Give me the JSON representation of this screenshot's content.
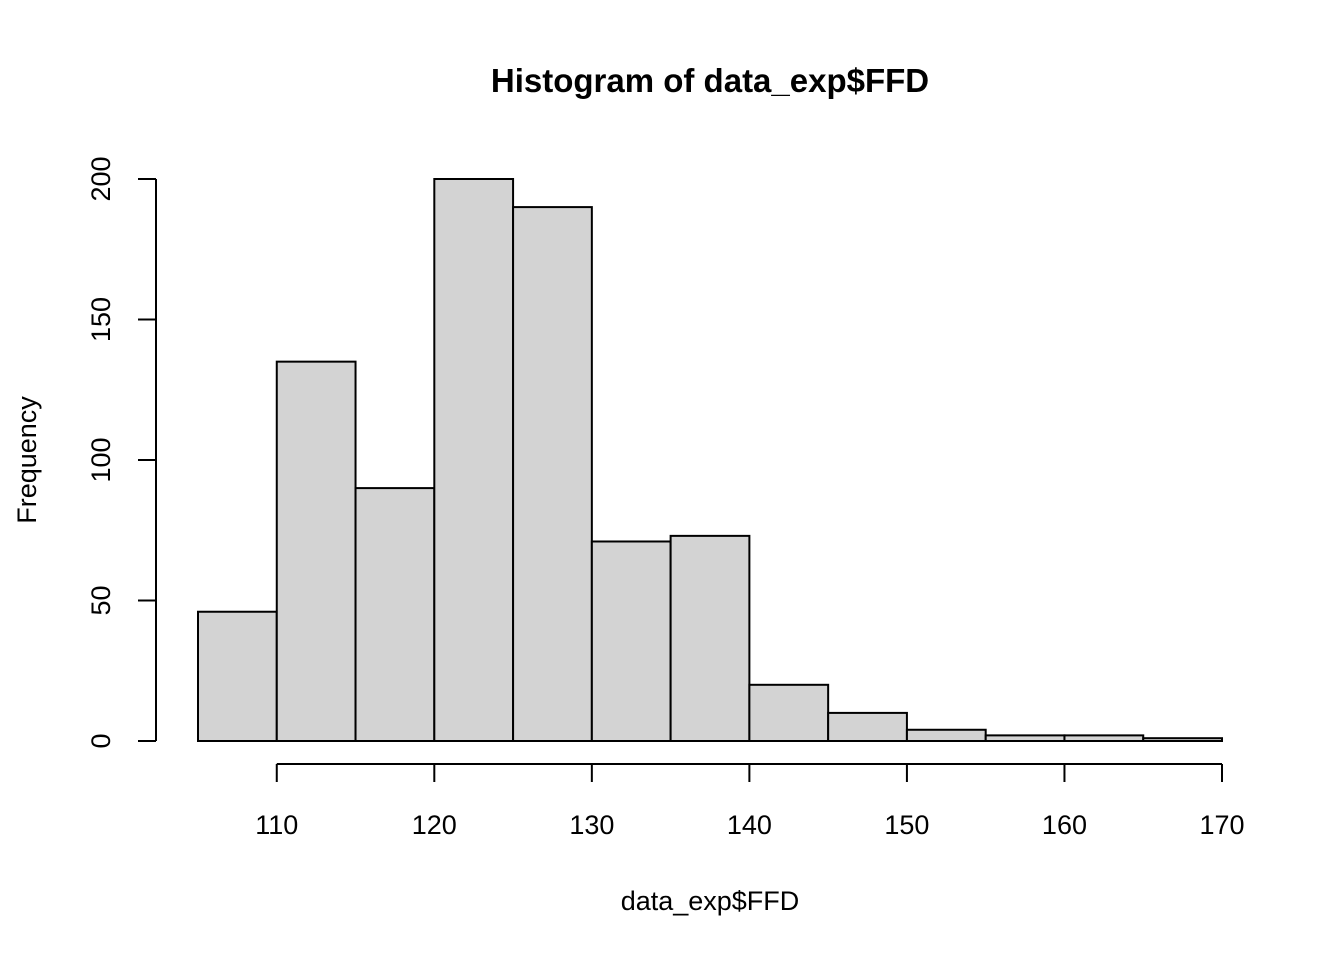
{
  "chart_data": {
    "type": "bar",
    "title": "Histogram of data_exp$FFD",
    "xlabel": "data_exp$FFD",
    "ylabel": "Frequency",
    "bin_edges": [
      105,
      110,
      115,
      120,
      125,
      130,
      135,
      140,
      145,
      150,
      155,
      160,
      165,
      170
    ],
    "values": [
      46,
      135,
      90,
      200,
      190,
      71,
      73,
      20,
      10,
      4,
      2,
      2,
      1
    ],
    "x_ticks": [
      110,
      120,
      130,
      140,
      150,
      160,
      170
    ],
    "y_ticks": [
      0,
      50,
      100,
      150,
      200
    ],
    "xlim": [
      105,
      170
    ],
    "ylim": [
      0,
      200
    ],
    "bar_color": "#d3d3d3",
    "grid": false,
    "legend": "none"
  }
}
